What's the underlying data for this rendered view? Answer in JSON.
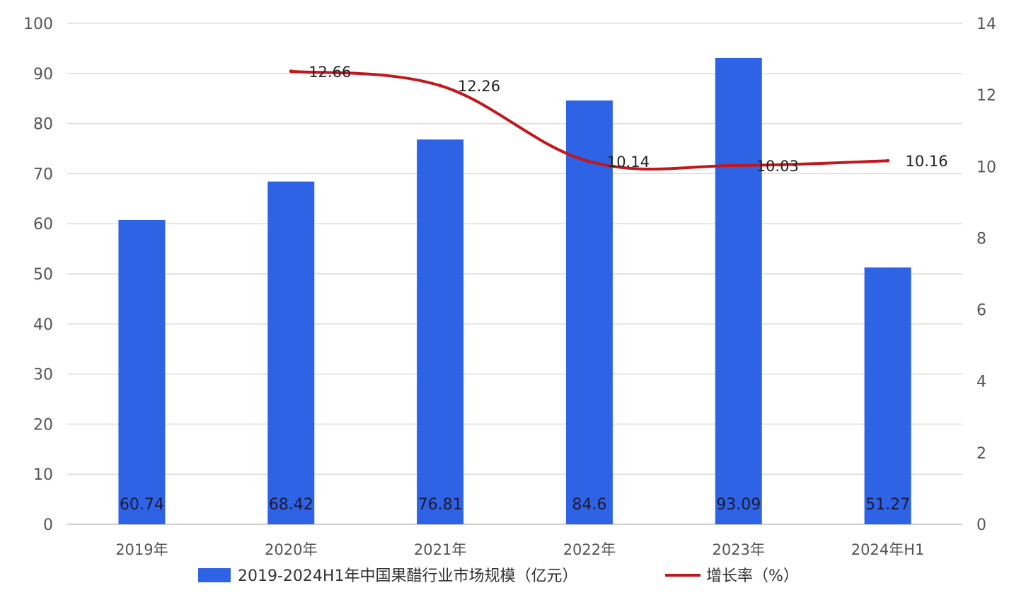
{
  "chart_data": {
    "type": "bar",
    "categories": [
      "2019年",
      "2020年",
      "2021年",
      "2022年",
      "2023年",
      "2024年H1"
    ],
    "series": [
      {
        "name": "2019-2024H1年中国果醋行业市场规模（亿元）",
        "type": "bar",
        "axis": "left",
        "color": "#2f63e6",
        "values": [
          60.74,
          68.42,
          76.81,
          84.6,
          93.09,
          51.27
        ],
        "labels": [
          "60.74",
          "68.42",
          "76.81",
          "84.6",
          "93.09",
          "51.27"
        ]
      },
      {
        "name": "增长率（%）",
        "type": "line",
        "axis": "right",
        "color": "#c0181c",
        "values": [
          null,
          12.66,
          12.26,
          10.14,
          10.03,
          10.16
        ],
        "labels": [
          "",
          "12.66",
          "12.26",
          "10.14",
          "10.03",
          "10.16"
        ]
      }
    ],
    "y_left": {
      "ylim": [
        0,
        100
      ],
      "ticks": [
        "0",
        "10",
        "20",
        "30",
        "40",
        "50",
        "60",
        "70",
        "80",
        "90",
        "100"
      ]
    },
    "y_right": {
      "ylim": [
        0,
        14
      ],
      "ticks": [
        "0",
        "2",
        "4",
        "6",
        "8",
        "10",
        "12",
        "14"
      ]
    },
    "grid": true,
    "legend_position": "bottom"
  }
}
